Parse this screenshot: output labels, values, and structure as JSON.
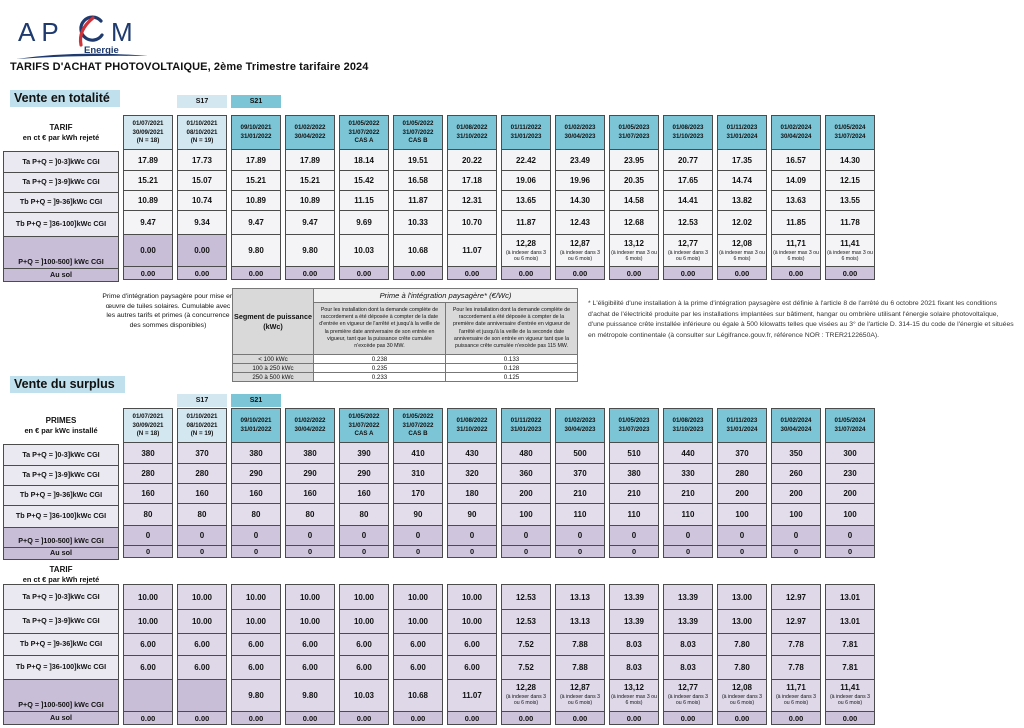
{
  "logo": {
    "part1": "AP",
    "part2": "M",
    "sub": "Energie"
  },
  "title": "TARIFS D'ACHAT PHOTOVOLTAIQUE, 2ème Trimestre tarifaire 2024",
  "sections": {
    "totalite": "Vente en totalité",
    "surplus": "Vente du surplus"
  },
  "badges": {
    "s17": "S17",
    "s21": "S21"
  },
  "colors": {
    "teal_header": "#7cc5d6",
    "light_blue_header": "#d3e7f0",
    "section_chip": "#bfe0ec",
    "purple_cell": "#c9bed8",
    "lavender_cell": "#e3ddeb",
    "ausol_cell": "#cdc3da",
    "navy": "#1e3a6e",
    "logo_red": "#cf3339"
  },
  "date_columns": [
    {
      "lines": [
        "01/07/2021",
        "30/09/2021",
        "(N = 18)"
      ],
      "tone": "light"
    },
    {
      "lines": [
        "01/10/2021",
        "08/10/2021",
        "(N = 19)"
      ],
      "tone": "light"
    },
    {
      "lines": [
        "09/10/2021",
        "31/01/2022"
      ],
      "tone": "teal"
    },
    {
      "lines": [
        "01/02/2022",
        "30/04/2022"
      ],
      "tone": "teal"
    },
    {
      "lines": [
        "01/05/2022",
        "31/07/2022",
        "CAS A"
      ],
      "tone": "teal"
    },
    {
      "lines": [
        "01/05/2022",
        "31/07/2022",
        "CAS B"
      ],
      "tone": "teal"
    },
    {
      "lines": [
        "01/08/2022",
        "31/10/2022"
      ],
      "tone": "teal"
    },
    {
      "lines": [
        "01/11/2022",
        "31/01/2023"
      ],
      "tone": "teal"
    },
    {
      "lines": [
        "01/02/2023",
        "30/04/2023"
      ],
      "tone": "teal"
    },
    {
      "lines": [
        "01/05/2023",
        "31/07/2023"
      ],
      "tone": "teal"
    },
    {
      "lines": [
        "01/08/2023",
        "31/10/2023"
      ],
      "tone": "teal"
    },
    {
      "lines": [
        "01/11/2023",
        "31/01/2024"
      ],
      "tone": "teal"
    },
    {
      "lines": [
        "01/02/2024",
        "30/04/2024"
      ],
      "tone": "teal"
    },
    {
      "lines": [
        "01/05/2024",
        "31/07/2024"
      ],
      "tone": "teal"
    }
  ],
  "tables": [
    {
      "id": "tarif-totalite",
      "header_lines": [
        "TARIF",
        "en ct € par kWh rejeté"
      ],
      "row_labels": [
        "Ta P+Q = ]0-3]kWc CGI",
        "Ta P+Q = ]3-9]kWc CGI",
        "Tb P+Q = ]9-36]kWc CGI",
        "Tb P+Q = ]36-100]kWc CGI",
        "P+Q = ]100-500] kWc CGI",
        "Au sol"
      ],
      "rows": [
        [
          "17.89",
          "17.73",
          "17.89",
          "17.89",
          "18.14",
          "19.51",
          "20.22",
          "22.42",
          "23.49",
          "23.95",
          "20.77",
          "17.35",
          "16.57",
          "14.30"
        ],
        [
          "15.21",
          "15.07",
          "15.21",
          "15.21",
          "15.42",
          "16.58",
          "17.18",
          "19.06",
          "19.96",
          "20.35",
          "17.65",
          "14.74",
          "14.09",
          "12.15"
        ],
        [
          "10.89",
          "10.74",
          "10.89",
          "10.89",
          "11.15",
          "11.87",
          "12.31",
          "13.65",
          "14.30",
          "14.58",
          "14.41",
          "13.82",
          "13.63",
          "13.55"
        ],
        [
          "9.47",
          "9.34",
          "9.47",
          "9.47",
          "9.69",
          "10.33",
          "10.70",
          "11.87",
          "12.43",
          "12.68",
          "12.53",
          "12.02",
          "11.85",
          "11.78"
        ],
        [
          "0.00",
          "0.00",
          "9.80",
          "9.80",
          "10.03",
          "10.68",
          "11.07",
          {
            "v": "12,28",
            "note": "(à indexer dans 3 ou 6 mois)"
          },
          {
            "v": "12,87",
            "note": "(à indexer dans 3 ou 6 mois)"
          },
          {
            "v": "13,12",
            "note": "(à indexer max 3 ou 6 mois)"
          },
          {
            "v": "12,77",
            "note": "(à indexer dans 3 ou 6 mois)"
          },
          {
            "v": "12,08",
            "note": "(à indexer max 3 ou 6 mois)"
          },
          {
            "v": "11,71",
            "note": "(à indexer max 3 ou 6 mois)"
          },
          {
            "v": "11,41",
            "note": "(à indexer max 3 ou 6 mois)"
          }
        ],
        [
          "0.00",
          "0.00",
          "0.00",
          "0.00",
          "0.00",
          "0.00",
          "0.00",
          "0.00",
          "0.00",
          "0.00",
          "0.00",
          "0.00",
          "0.00",
          "0.00"
        ]
      ]
    },
    {
      "id": "primes-surplus",
      "header_lines": [
        "PRIMES",
        "en € par kWc installé"
      ],
      "row_labels": [
        "Ta P+Q = ]0-3]kWc CGI",
        "Ta P+Q = ]3-9]kWc CGI",
        "Tb P+Q = ]9-36]kWc CGI",
        "Tb P+Q = ]36-100]kWc CGI",
        "P+Q = ]100-500] kWc CGI",
        "Au sol"
      ],
      "rows": [
        [
          "380",
          "370",
          "380",
          "380",
          "390",
          "410",
          "430",
          "480",
          "500",
          "510",
          "440",
          "370",
          "350",
          "300"
        ],
        [
          "280",
          "280",
          "290",
          "290",
          "290",
          "310",
          "320",
          "360",
          "370",
          "380",
          "330",
          "280",
          "260",
          "230"
        ],
        [
          "160",
          "160",
          "160",
          "160",
          "160",
          "170",
          "180",
          "200",
          "210",
          "210",
          "210",
          "200",
          "200",
          "200"
        ],
        [
          "80",
          "80",
          "80",
          "80",
          "80",
          "90",
          "90",
          "100",
          "110",
          "110",
          "110",
          "100",
          "100",
          "100"
        ],
        [
          "0",
          "0",
          "0",
          "0",
          "0",
          "0",
          "0",
          "0",
          "0",
          "0",
          "0",
          "0",
          "0",
          "0"
        ],
        [
          "0",
          "0",
          "0",
          "0",
          "0",
          "0",
          "0",
          "0",
          "0",
          "0",
          "0",
          "0",
          "0",
          "0"
        ]
      ]
    },
    {
      "id": "tarif-surplus",
      "header_lines": [
        "TARIF",
        "en ct € par kWh rejeté"
      ],
      "row_labels": [
        "Ta P+Q = ]0-3]kWc CGI",
        "Ta P+Q = ]3-9]kWc CGI",
        "Tb P+Q = ]9-36]kWc CGI",
        "Tb P+Q = ]36-100]kWc CGI",
        "P+Q = ]100-500] kWc CGI",
        "Au sol"
      ],
      "rows": [
        [
          "10.00",
          "10.00",
          "10.00",
          "10.00",
          "10.00",
          "10.00",
          "10.00",
          "12.53",
          "13.13",
          "13.39",
          "13.39",
          "13.00",
          "12.97",
          "13.01"
        ],
        [
          "10.00",
          "10.00",
          "10.00",
          "10.00",
          "10.00",
          "10.00",
          "10.00",
          "12.53",
          "13.13",
          "13.39",
          "13.39",
          "13.00",
          "12.97",
          "13.01"
        ],
        [
          "6.00",
          "6.00",
          "6.00",
          "6.00",
          "6.00",
          "6.00",
          "6.00",
          "7.52",
          "7.88",
          "8.03",
          "8.03",
          "7.80",
          "7.78",
          "7.81"
        ],
        [
          "6.00",
          "6.00",
          "6.00",
          "6.00",
          "6.00",
          "6.00",
          "6.00",
          "7.52",
          "7.88",
          "8.03",
          "8.03",
          "7.80",
          "7.78",
          "7.81"
        ],
        [
          "",
          "",
          "9.80",
          "9.80",
          "10.03",
          "10.68",
          "11.07",
          {
            "v": "12,28",
            "note": "(à indexer dans 3 ou 6 mois)"
          },
          {
            "v": "12,87",
            "note": "(à indexer dans 3 ou 6 mois)"
          },
          {
            "v": "13,12",
            "note": "(à indexer max 3 ou 6 mois)"
          },
          {
            "v": "12,77",
            "note": "(à indexer dans 3 ou 6 mois)"
          },
          {
            "v": "12,08",
            "note": "(à indexer dans 3 ou 6 mois)"
          },
          {
            "v": "11,71",
            "note": "(à indexer dans 3 ou 6 mois)"
          },
          {
            "v": "11,41",
            "note": "(à indexer dans 3 ou 6 mois)"
          }
        ],
        [
          "0.00",
          "0.00",
          "0.00",
          "0.00",
          "0.00",
          "0.00",
          "0.00",
          "0.00",
          "0.00",
          "0.00",
          "0.00",
          "0.00",
          "0.00",
          "0.00"
        ]
      ]
    }
  ],
  "prime": {
    "side_note": "Prime d'intégration paysagère pour mise en œuvre de tuiles solaires. Cumulable avec les autres tarifs et primes (à concurrence des sommes disponibles)",
    "title": "Prime à l'intégration paysagère* (€/Wc)",
    "col1_header": "Segment de puissance (kWc)",
    "period1": "Pour les installation dont la demande complète de raccordement a été déposée à compter de la date d'entrée en vigueur de l'arrêté et jusqu'à la veille de la première date anniversaire de son entrée en vigueur, tant que la puissance crête cumulée n'excède pas 30 MW.",
    "period2": "Pour les installation dont la demande complète de raccordement a été déposée à compter de la première date anniversaire d'entrée en vigueur de l'arrêté et jusqu'à la veille de la seconde date anniversaire de son entrée en vigueur tant que la puissance crête cumulée n'excède pas 115 MW.",
    "rows": [
      [
        "< 100 kWc",
        "0.238",
        "0.133"
      ],
      [
        "100 à 250 kWc",
        "0.235",
        "0.128"
      ],
      [
        "250 à 500 kWc",
        "0.233",
        "0.125"
      ]
    ]
  },
  "footnote": "* L'éligibilité d'une installation à la prime d'intégration paysagère est définie à l'article 8 de l'arrêté du 6 octobre 2021 fixant les conditions d'achat de l'électricité produite par les installations implantées sur bâtiment, hangar ou ombrière utilisant l'énergie solaire photovoltaïque, d'une puissance crête installée inférieure ou égale à 500 kilowatts telles que visées au 3° de l'article D. 314-15 du code de l'énergie et situées en métropole continentale (à consulter sur Légifrance.gouv.fr, référence NOR : TRER2122650A)."
}
